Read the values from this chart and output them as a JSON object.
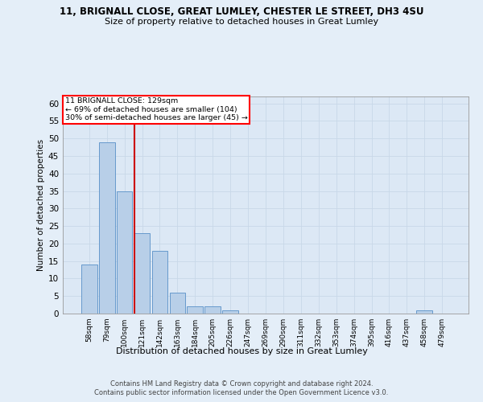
{
  "title_line1": "11, BRIGNALL CLOSE, GREAT LUMLEY, CHESTER LE STREET, DH3 4SU",
  "title_line2": "Size of property relative to detached houses in Great Lumley",
  "xlabel": "Distribution of detached houses by size in Great Lumley",
  "ylabel": "Number of detached properties",
  "bar_labels": [
    "58sqm",
    "79sqm",
    "100sqm",
    "121sqm",
    "142sqm",
    "163sqm",
    "184sqm",
    "205sqm",
    "226sqm",
    "247sqm",
    "269sqm",
    "290sqm",
    "311sqm",
    "332sqm",
    "353sqm",
    "374sqm",
    "395sqm",
    "416sqm",
    "437sqm",
    "458sqm",
    "479sqm"
  ],
  "bar_values": [
    14,
    49,
    35,
    23,
    18,
    6,
    2,
    2,
    1,
    0,
    0,
    0,
    0,
    0,
    0,
    0,
    0,
    0,
    0,
    1,
    0
  ],
  "bar_color": "#b8cfe8",
  "bar_edge_color": "#6699cc",
  "vline_color": "#cc0000",
  "vline_pos": 3,
  "annotation_line1": "11 BRIGNALL CLOSE: 129sqm",
  "annotation_line2": "← 69% of detached houses are smaller (104)",
  "annotation_line3": "30% of semi-detached houses are larger (45) →",
  "ylim": [
    0,
    62
  ],
  "yticks": [
    0,
    5,
    10,
    15,
    20,
    25,
    30,
    35,
    40,
    45,
    50,
    55,
    60
  ],
  "grid_color": "#c8d8e8",
  "plot_bg": "#dce8f5",
  "fig_bg": "#e4eef8",
  "footer_line1": "Contains HM Land Registry data © Crown copyright and database right 2024.",
  "footer_line2": "Contains public sector information licensed under the Open Government Licence v3.0."
}
